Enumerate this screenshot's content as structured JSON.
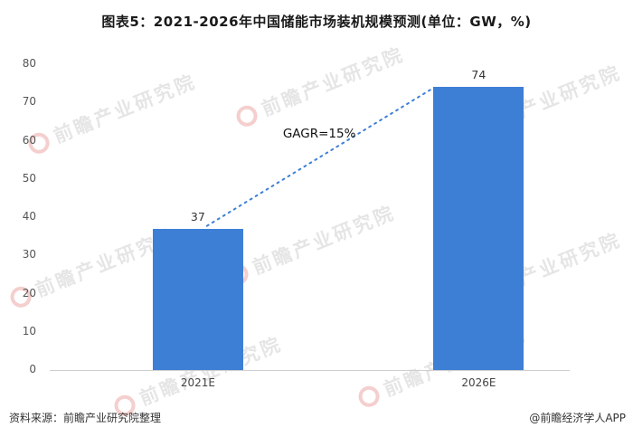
{
  "title": "图表5：2021-2026年中国储能市场装机规模预测(单位：GW，%)",
  "chart_data": {
    "type": "bar",
    "title": "图表5：2021-2026年中国储能市场装机规模预测(单位：GW，%)",
    "categories": [
      "2021E",
      "2026E"
    ],
    "values": [
      37,
      74
    ],
    "ylim": [
      0,
      80
    ],
    "yticks": [
      0,
      10,
      20,
      30,
      40,
      50,
      60,
      70,
      80
    ],
    "annotation": "GAGR=15%",
    "bar_color": "#3E7FD6",
    "unit": "GW",
    "grid": false,
    "legend_position": "none"
  },
  "watermark": {
    "text": "前瞻产业研究院"
  },
  "footer": {
    "source": "资料来源：前瞻产业研究院整理",
    "credit": "@前瞻经济学人APP"
  }
}
